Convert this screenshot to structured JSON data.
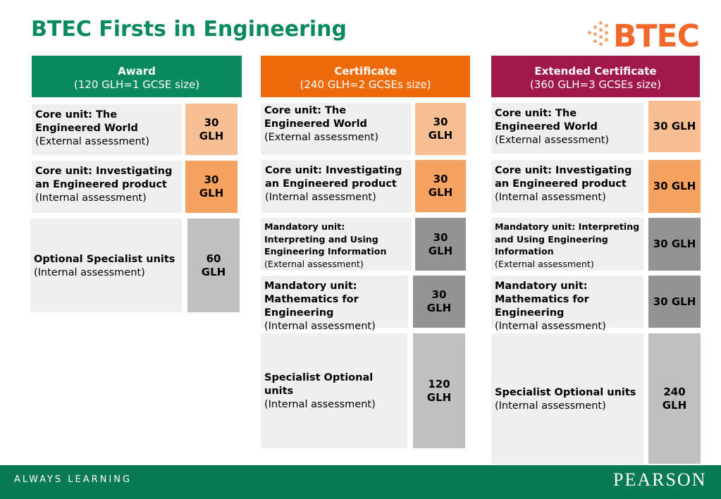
{
  "title": "BTEC Firsts in Engineering",
  "logo": {
    "text": "BTEC",
    "icon": "btec-dots-logo"
  },
  "colors": {
    "green": "#0a8a5e",
    "orange": "#ed6b0a",
    "crimson": "#a0174b",
    "footer": "#0a7a52"
  },
  "columns": [
    {
      "header": {
        "name": "Award",
        "size": "(120 GLH=1 GCSE size)"
      },
      "units": [
        {
          "bold": "Core unit: The Engineered World",
          "normal": "(External assessment)",
          "glh1": "30",
          "glh2": "GLH"
        },
        {
          "bold": "Core unit: Investigating an Engineered product",
          "normal": "(Internal assessment)",
          "glh1": "30",
          "glh2": "GLH"
        },
        {
          "bold": "Optional Specialist units",
          "normal": "(Internal assessment)",
          "glh1": "60",
          "glh2": "GLH"
        }
      ]
    },
    {
      "header": {
        "name": "Certificate",
        "size": "(240 GLH=2 GCSEs size)"
      },
      "units": [
        {
          "bold": "Core unit: The Engineered World",
          "normal": "(External assessment)",
          "glh1": "30",
          "glh2": "GLH"
        },
        {
          "bold": "Core unit: Investigating an Engineered product",
          "normal": "(Internal assessment)",
          "glh1": "30",
          "glh2": "GLH"
        },
        {
          "bold": "Mandatory unit: Interpreting and Using Engineering Information",
          "normal": "(External assessment)",
          "glh1": "30",
          "glh2": "GLH"
        },
        {
          "bold": "Mandatory unit: Mathematics for Engineering",
          "normal": "(Internal assessment)",
          "glh1": "30",
          "glh2": "GLH"
        },
        {
          "bold": "Specialist Optional units",
          "normal": "(Internal assessment)",
          "glh1": "120",
          "glh2": "GLH"
        }
      ]
    },
    {
      "header": {
        "name": "Extended Certificate",
        "size": "(360 GLH=3 GCSEs size)"
      },
      "units": [
        {
          "bold": "Core unit: The Engineered World",
          "normal": "(External assessment)",
          "glh1": "30 GLH",
          "glh2": ""
        },
        {
          "bold": "Core unit: Investigating an Engineered product",
          "normal": "(Internal assessment)",
          "glh1": "30 GLH",
          "glh2": ""
        },
        {
          "bold": "Mandatory unit: Interpreting and Using Engineering Information",
          "normal": "(External assessment)",
          "glh1": "30 GLH",
          "glh2": ""
        },
        {
          "bold": "Mandatory unit: Mathematics for Engineering",
          "normal": "(Internal assessment)",
          "glh1": "30 GLH",
          "glh2": ""
        },
        {
          "bold": "Specialist Optional units",
          "normal": "(Internal assessment)",
          "glh1": "240",
          "glh2": "GLH"
        }
      ]
    }
  ],
  "footer": {
    "left": "ALWAYS LEARNING",
    "right": "PEARSON"
  }
}
